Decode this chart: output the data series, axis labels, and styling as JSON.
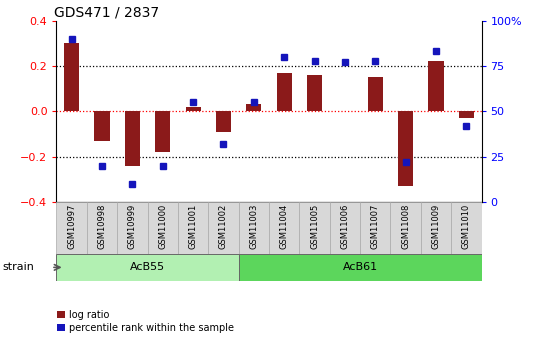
{
  "title": "GDS471 / 2837",
  "samples": [
    "GSM10997",
    "GSM10998",
    "GSM10999",
    "GSM11000",
    "GSM11001",
    "GSM11002",
    "GSM11003",
    "GSM11004",
    "GSM11005",
    "GSM11006",
    "GSM11007",
    "GSM11008",
    "GSM11009",
    "GSM11010"
  ],
  "log_ratio": [
    0.3,
    -0.13,
    -0.24,
    -0.18,
    0.02,
    -0.09,
    0.03,
    0.17,
    0.16,
    0.0,
    0.15,
    -0.33,
    0.22,
    -0.03
  ],
  "percentile_rank": [
    90,
    20,
    10,
    20,
    55,
    32,
    55,
    80,
    78,
    77,
    78,
    22,
    83,
    42
  ],
  "strain_labels": [
    "AcB55",
    "AcB61"
  ],
  "strain_ranges": [
    [
      0,
      5
    ],
    [
      6,
      13
    ]
  ],
  "strain_color_acb55": "#b2f0b2",
  "strain_color_acb61": "#5cd65c",
  "bar_color": "#8B1A1A",
  "dot_color": "#1515bb",
  "ylim": [
    -0.4,
    0.4
  ],
  "y2lim": [
    0,
    100
  ],
  "yticks": [
    -0.4,
    -0.2,
    0.0,
    0.2,
    0.4
  ],
  "y2ticks": [
    0,
    25,
    50,
    75,
    100
  ],
  "y2ticklabels": [
    "0",
    "25",
    "50",
    "75",
    "100%"
  ],
  "hlines_black": [
    0.2,
    -0.2
  ],
  "hline_red": 0.0,
  "legend_log_ratio": "log ratio",
  "legend_percentile": "percentile rank within the sample",
  "xlabel_strain": "strain",
  "cell_bg_color": "#D8D8D8",
  "cell_border_color": "#AAAAAA"
}
